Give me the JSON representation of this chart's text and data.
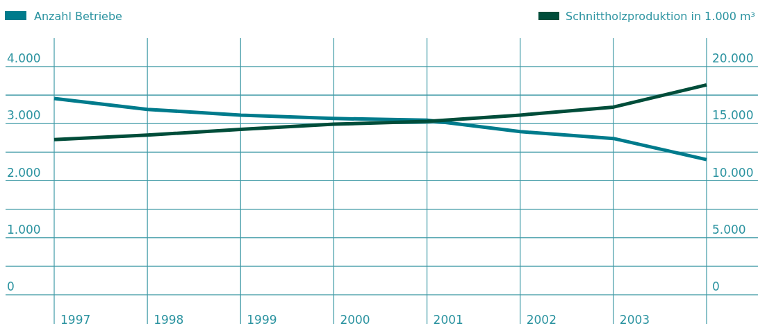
{
  "chart_data": {
    "type": "line",
    "categories": [
      "1997",
      "1998",
      "1999",
      "2000",
      "2001",
      "2002",
      "2003",
      null
    ],
    "series": [
      {
        "name": "Anzahl Betriebe",
        "color": "#007b8c",
        "values": [
          3440,
          3250,
          3150,
          3090,
          3060,
          2860,
          2740,
          2370
        ]
      },
      {
        "name": "Schnittholzproduktion in 1.000 m³",
        "color": "#004d3a",
        "axis": "y2",
        "values": [
          13600,
          14000,
          14500,
          14950,
          15200,
          15750,
          16450,
          18400
        ]
      }
    ],
    "ylim": [
      0,
      4000
    ],
    "yticks": [
      0,
      {
        "value": 500,
        "label": null
      },
      {
        "value": 1000,
        "label": "1.000"
      },
      {
        "value": 1500,
        "label": null
      },
      {
        "value": 2000,
        "label": "2.000"
      },
      {
        "value": 2500,
        "label": null
      },
      {
        "value": 3000,
        "label": "3.000"
      },
      {
        "value": 3500,
        "label": null
      },
      {
        "value": 4000,
        "label": "4.000"
      }
    ],
    "y2lim": [
      0,
      20000
    ],
    "y2ticks": [
      0,
      {
        "value": 2500,
        "label": null
      },
      {
        "value": 5000,
        "label": "5.000"
      },
      {
        "value": 7500,
        "label": null
      },
      {
        "value": 10000,
        "label": "10.000"
      },
      {
        "value": 12500,
        "label": null
      },
      {
        "value": 15000,
        "label": "15.000"
      },
      {
        "value": 17500,
        "label": null
      },
      {
        "value": 20000,
        "label": "20.000"
      }
    ],
    "grid": true,
    "legend": "top",
    "marker": "none",
    "line_style": "solid"
  }
}
